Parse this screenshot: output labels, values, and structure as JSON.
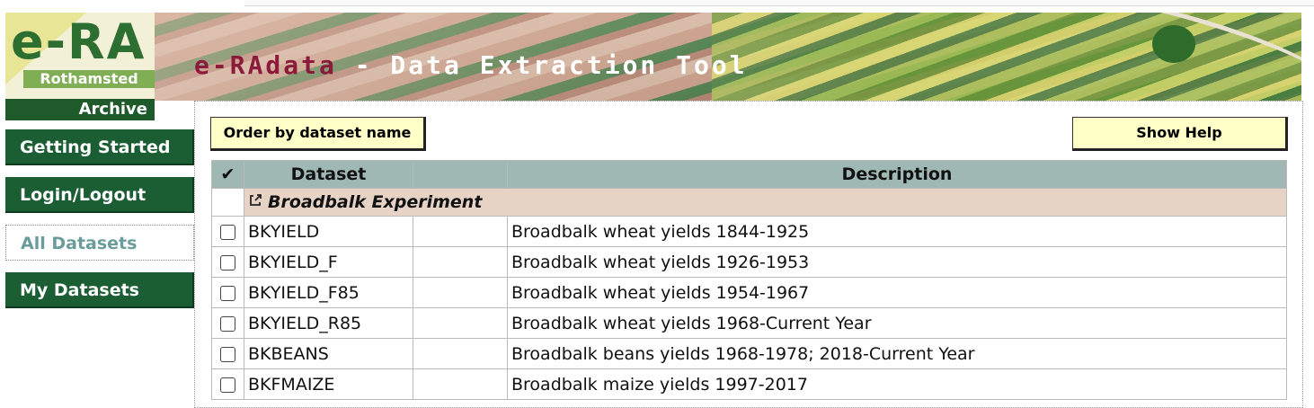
{
  "header": {
    "title_brand": "e-RAdata",
    "title_rest": " - Data Extraction Tool"
  },
  "logo": {
    "main": "e-RA",
    "sub": "Rothamsted",
    "sub2": "Archive"
  },
  "sidebar": {
    "items": [
      {
        "label": "Getting Started",
        "active": false
      },
      {
        "label": "Login/Logout",
        "active": false
      },
      {
        "label": "All Datasets",
        "active": true
      },
      {
        "label": "My Datasets",
        "active": false
      }
    ]
  },
  "toolbar": {
    "order_button": "Order by dataset name",
    "help_button": "Show Help"
  },
  "table": {
    "headers": {
      "check": "✔",
      "dataset": "Dataset",
      "description": "Description"
    },
    "group": "Broadbalk Experiment",
    "rows": [
      {
        "dataset": "BKYIELD",
        "description": "Broadbalk wheat yields 1844-1925"
      },
      {
        "dataset": "BKYIELD_F",
        "description": "Broadbalk wheat yields 1926-1953"
      },
      {
        "dataset": "BKYIELD_F85",
        "description": "Broadbalk wheat yields 1954-1967"
      },
      {
        "dataset": "BKYIELD_R85",
        "description": "Broadbalk wheat yields 1968-Current Year"
      },
      {
        "dataset": "BKBEANS",
        "description": "Broadbalk beans yields 1968-1978; 2018-Current Year"
      },
      {
        "dataset": "BKFMAIZE",
        "description": "Broadbalk maize yields 1997-2017"
      }
    ]
  },
  "colors": {
    "nav_green": "#1b5e33",
    "brand_maroon": "#8c1b3b",
    "button_bg": "#ffffc8",
    "table_header": "#9fb8b3",
    "group_row": "#e6d3c6"
  }
}
